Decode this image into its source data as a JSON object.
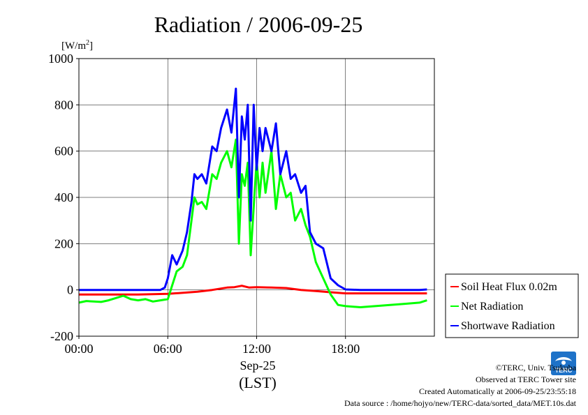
{
  "chart_data": {
    "type": "line",
    "title": "Radiation / 2006-09-25",
    "ylabel": "[W/m",
    "ylabel_sup": "2",
    "ylabel_close": "]",
    "ylim": [
      -200,
      1000
    ],
    "yticks": [
      -200,
      0,
      200,
      400,
      600,
      800,
      1000
    ],
    "xlim": [
      0,
      24
    ],
    "xticks": [
      {
        "hour": 0,
        "label": "00:00"
      },
      {
        "hour": 6,
        "label": "06:00"
      },
      {
        "hour": 12,
        "label": "12:00"
      },
      {
        "hour": 18,
        "label": "18:00"
      }
    ],
    "xlabel_date": "Sep-25",
    "xlabel_unit": "(LST)",
    "grid": true,
    "legend_position": "bottom-right-outside",
    "series": [
      {
        "name": "Soil Heat Flux 0.02m",
        "color": "#ff0000",
        "x": [
          0,
          2,
          4,
          6,
          8,
          9,
          10,
          10.5,
          11,
          11.5,
          12,
          13,
          14,
          15,
          16,
          17,
          18,
          20,
          22,
          23.5
        ],
        "y": [
          -20,
          -20,
          -20,
          -17,
          -8,
          0,
          10,
          12,
          18,
          10,
          12,
          10,
          8,
          0,
          -5,
          -10,
          -15,
          -15,
          -15,
          -15
        ]
      },
      {
        "name": "Net Radiation",
        "color": "#00ff00",
        "x": [
          0,
          0.5,
          1,
          1.5,
          2,
          2.5,
          3,
          3.5,
          4,
          4.5,
          5,
          5.5,
          6,
          6.3,
          6.6,
          7,
          7.3,
          7.6,
          7.8,
          8,
          8.3,
          8.6,
          9,
          9.3,
          9.6,
          10,
          10.3,
          10.6,
          10.8,
          11,
          11.2,
          11.4,
          11.6,
          12,
          12.2,
          12.4,
          12.6,
          13,
          13.3,
          13.6,
          14,
          14.3,
          14.6,
          15,
          15.3,
          15.6,
          16,
          16.5,
          17,
          17.5,
          18,
          19,
          20,
          21,
          22,
          23,
          23.5
        ],
        "y": [
          -55,
          -48,
          -50,
          -52,
          -45,
          -35,
          -25,
          -40,
          -45,
          -40,
          -50,
          -45,
          -40,
          20,
          80,
          100,
          150,
          300,
          400,
          370,
          380,
          350,
          500,
          480,
          550,
          600,
          530,
          650,
          200,
          500,
          450,
          550,
          150,
          560,
          400,
          550,
          420,
          600,
          350,
          500,
          400,
          420,
          300,
          350,
          280,
          230,
          120,
          50,
          -20,
          -65,
          -70,
          -75,
          -70,
          -65,
          -60,
          -55,
          -45
        ]
      },
      {
        "name": "Shortwave Radiation",
        "color": "#0000ff",
        "x": [
          0,
          1,
          2,
          3,
          4,
          5,
          5.5,
          5.8,
          6,
          6.3,
          6.6,
          7,
          7.3,
          7.6,
          7.8,
          8,
          8.3,
          8.6,
          9,
          9.3,
          9.6,
          10,
          10.3,
          10.6,
          10.8,
          11,
          11.2,
          11.4,
          11.6,
          11.8,
          12,
          12.2,
          12.4,
          12.6,
          13,
          13.3,
          13.6,
          14,
          14.3,
          14.6,
          15,
          15.3,
          15.6,
          16,
          16.5,
          17,
          17.5,
          18,
          19,
          20,
          21,
          22,
          23,
          23.5
        ],
        "y": [
          0,
          0,
          0,
          0,
          0,
          0,
          0,
          10,
          50,
          150,
          110,
          170,
          250,
          380,
          500,
          480,
          500,
          460,
          620,
          600,
          700,
          780,
          680,
          870,
          400,
          750,
          650,
          800,
          300,
          800,
          520,
          700,
          600,
          700,
          600,
          720,
          500,
          600,
          480,
          500,
          420,
          450,
          250,
          200,
          180,
          50,
          20,
          2,
          0,
          0,
          0,
          0,
          0,
          2
        ]
      }
    ]
  },
  "legend": {
    "items": [
      {
        "label": "Soil Heat Flux 0.02m",
        "color": "#ff0000"
      },
      {
        "label": "Net Radiation",
        "color": "#00ff00"
      },
      {
        "label": "Shortwave Radiation",
        "color": "#0000ff"
      }
    ]
  },
  "credits": {
    "line1": "©TERC, Univ. Tsukuba",
    "line2": "Observed at TERC Tower site",
    "line3": "Created Automatically at 2006-09-25/23:55:18",
    "line4": "Data source : /home/hojyo/new/TERC-data/sorted_data/MET.10s.dat"
  },
  "logo": {
    "icon": "terc-logo-icon",
    "text": "TERC",
    "color": "#1e72c8"
  }
}
